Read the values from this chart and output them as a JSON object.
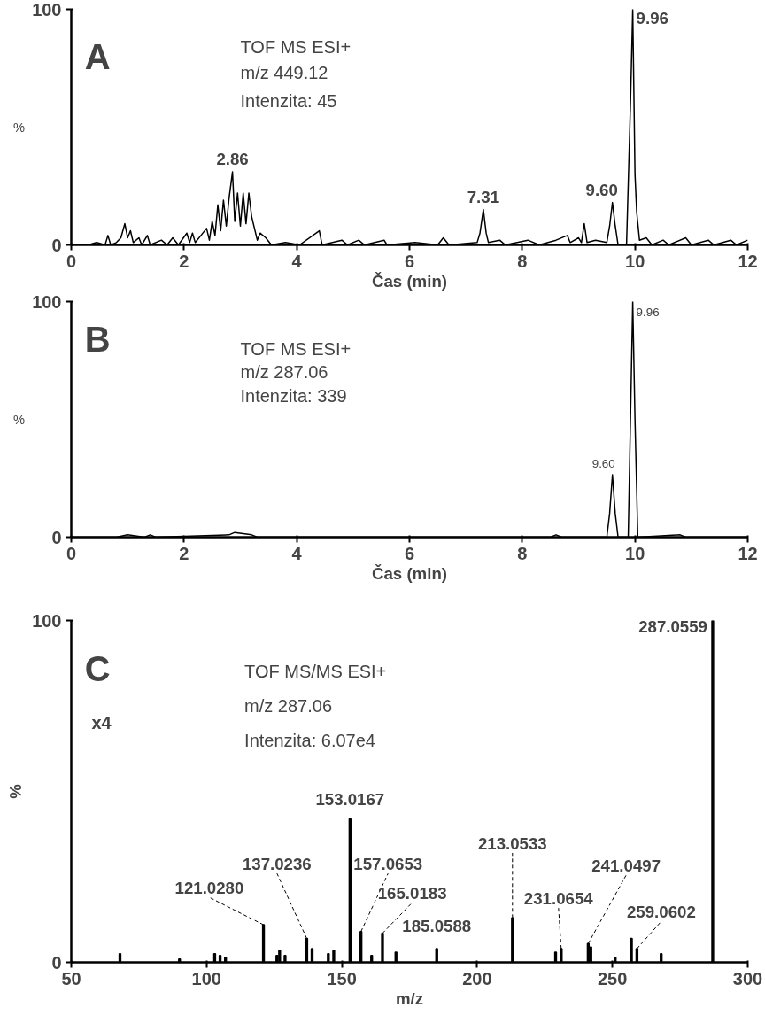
{
  "chart_data": [
    {
      "type": "line",
      "xlabel": "Čas (min)",
      "ylabel": "%",
      "xlim": [
        0,
        12
      ],
      "ylim": [
        0,
        100
      ],
      "xticks": [
        0,
        2,
        4,
        6,
        8,
        10,
        12
      ],
      "yticks": [
        0,
        100
      ],
      "grid": false,
      "annotations": [
        "A",
        "TOF MS ESI+",
        "m/z 449.12",
        "Intenzita: 45",
        {
          "text": "2.86",
          "x": 2.86,
          "y": 31
        },
        {
          "text": "7.31",
          "x": 7.31,
          "y": 15
        },
        {
          "text": "9.60",
          "x": 9.6,
          "y": 18
        },
        {
          "text": "9.96",
          "x": 9.96,
          "y": 100
        }
      ],
      "series": [
        {
          "color": "#000000",
          "x": [
            0,
            0.3,
            0.45,
            0.6,
            0.65,
            0.7,
            0.8,
            0.88,
            0.95,
            1.0,
            1.05,
            1.1,
            1.2,
            1.25,
            1.35,
            1.4,
            1.6,
            1.7,
            1.8,
            1.9,
            2.05,
            2.1,
            2.15,
            2.2,
            2.3,
            2.4,
            2.45,
            2.5,
            2.55,
            2.6,
            2.65,
            2.7,
            2.75,
            2.8,
            2.86,
            2.9,
            2.95,
            3.0,
            3.05,
            3.1,
            3.15,
            3.2,
            3.25,
            3.3,
            3.35,
            3.45,
            3.55,
            3.8,
            4.05,
            4.4,
            4.45,
            4.8,
            4.9,
            5.1,
            5.2,
            5.55,
            5.6,
            6.1,
            6.5,
            6.6,
            6.7,
            7.2,
            7.25,
            7.31,
            7.36,
            7.4,
            7.6,
            7.7,
            8.1,
            8.3,
            8.6,
            8.8,
            8.85,
            9.0,
            9.05,
            9.1,
            9.15,
            9.3,
            9.5,
            9.55,
            9.6,
            9.65,
            9.7,
            9.85,
            9.92,
            9.96,
            10.0,
            10.03,
            10.08,
            10.2,
            10.3,
            10.5,
            10.6,
            10.9,
            11.0,
            11.3,
            11.4,
            11.7,
            11.8,
            12
          ],
          "values": [
            0,
            0,
            1,
            0,
            4,
            0,
            1,
            3,
            9,
            3,
            6,
            1,
            3,
            0,
            4,
            0,
            2,
            0,
            3,
            0,
            5,
            1,
            5,
            1,
            4,
            7,
            2,
            10,
            4,
            17,
            6,
            19,
            8,
            20,
            31,
            10,
            22,
            8,
            22,
            9,
            22,
            12,
            7,
            2,
            5,
            3,
            0,
            1,
            0,
            6,
            0,
            2,
            0,
            2,
            0,
            2,
            0,
            1,
            0,
            3,
            0,
            1,
            5,
            15,
            5,
            1,
            2,
            0,
            2,
            0,
            2,
            4,
            1,
            3,
            1,
            9,
            1,
            2,
            1,
            8,
            18,
            8,
            0,
            0,
            60,
            100,
            30,
            14,
            2,
            3,
            0,
            2,
            0,
            3,
            0,
            2,
            0,
            2,
            0,
            2
          ]
        }
      ]
    },
    {
      "type": "line",
      "xlabel": "Čas (min)",
      "ylabel": "%",
      "xlim": [
        0,
        12
      ],
      "ylim": [
        0,
        100
      ],
      "xticks": [
        0,
        2,
        4,
        6,
        8,
        10,
        12
      ],
      "yticks": [
        0,
        100
      ],
      "grid": false,
      "annotations": [
        "B",
        "TOF MS ESI+",
        "m/z 287.06",
        "Intenzita: 339",
        {
          "text": "9.60",
          "x": 9.6,
          "y": 26.5
        },
        {
          "text": "9.96",
          "x": 9.96,
          "y": 100
        }
      ],
      "series": [
        {
          "color": "#000000",
          "x": [
            0,
            0.8,
            1.0,
            1.3,
            1.4,
            1.5,
            2.8,
            2.9,
            3.2,
            3.3,
            8.5,
            8.6,
            8.7,
            9.5,
            9.55,
            9.6,
            9.65,
            9.7,
            9.88,
            9.92,
            9.96,
            10.0,
            10.05,
            10.8,
            10.9,
            12
          ],
          "values": [
            0,
            0,
            1,
            0,
            1,
            0,
            1,
            2,
            1,
            0,
            0,
            1,
            0,
            0,
            10,
            26.5,
            10,
            0,
            0,
            50,
            100,
            50,
            0,
            1,
            0,
            0
          ]
        }
      ]
    },
    {
      "type": "bar",
      "xlabel": "m/z",
      "ylabel": "%",
      "xlim": [
        50,
        300
      ],
      "ylim": [
        0,
        100
      ],
      "xticks": [
        50,
        100,
        150,
        200,
        250,
        300
      ],
      "yticks": [
        0,
        100
      ],
      "grid": false,
      "annotations": [
        "C",
        "TOF MS/MS ESI+",
        "m/z 287.06",
        "Intenzita: 6.07e4",
        "x4",
        {
          "text": "121.0280",
          "x": 121.028,
          "y": 11
        },
        {
          "text": "137.0236",
          "x": 137.0236,
          "y": 7
        },
        {
          "text": "153.0167",
          "x": 153.0167,
          "y": 42
        },
        {
          "text": "157.0653",
          "x": 157.0653,
          "y": 9
        },
        {
          "text": "165.0183",
          "x": 165.0183,
          "y": 8.5
        },
        {
          "text": "185.0588",
          "x": 185.0588,
          "y": 4
        },
        {
          "text": "213.0533",
          "x": 213.0533,
          "y": 13
        },
        {
          "text": "231.0654",
          "x": 231.0654,
          "y": 4
        },
        {
          "text": "241.0497",
          "x": 241.0497,
          "y": 5.5
        },
        {
          "text": "259.0602",
          "x": 259.0602,
          "y": 4
        },
        {
          "text": "287.0559",
          "x": 287.0559,
          "y": 100
        }
      ],
      "series": [
        {
          "color": "#000000",
          "x": [
            68,
            90,
            103,
            105,
            107,
            121.028,
            126,
            127,
            129,
            137.0236,
            139,
            145,
            147,
            153.0167,
            157.0653,
            161,
            165.0183,
            170,
            185.0588,
            213.0533,
            229,
            231.0654,
            241.0497,
            242,
            251,
            257,
            259.0602,
            268,
            287.0559
          ],
          "values": [
            2.5,
            1,
            2.5,
            2,
            1.5,
            11,
            2,
            3.5,
            2,
            7,
            4,
            2.5,
            3.5,
            42,
            9,
            2,
            8.5,
            3,
            4,
            13,
            3,
            4,
            5.5,
            4.5,
            1.5,
            7,
            4,
            2.5,
            100
          ]
        }
      ]
    }
  ]
}
